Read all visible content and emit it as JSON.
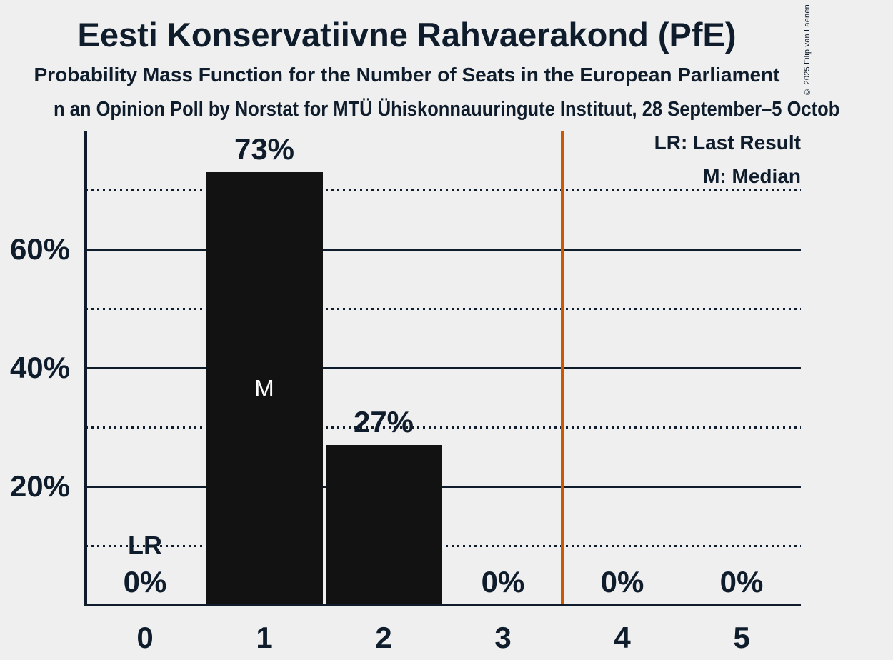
{
  "page": {
    "background_color": "#EFEFEF",
    "text_color": "#0E1C2B"
  },
  "header": {
    "title": "Eesti Konservatiivne Rahvaerakond (PfE)",
    "subtitle": "Probability Mass Function for the Number of Seats in the European Parliament",
    "source_line": "n an Opinion Poll by Norstat for MTÜ Ühiskonnauuringute Instituut, 28 September–5 Octob",
    "copyright": "© 2025 Filip van Laenen"
  },
  "legend": {
    "lr_label": "LR: Last Result",
    "m_label": "M: Median"
  },
  "chart_data": {
    "type": "bar",
    "title": "Eesti Konservatiivne Rahvaerakond (PfE)",
    "categories": [
      "0",
      "1",
      "2",
      "3",
      "4",
      "5"
    ],
    "values": [
      0,
      73,
      27,
      0,
      0,
      0
    ],
    "value_labels": [
      "0%",
      "73%",
      "27%",
      "0%",
      "0%",
      "0%"
    ],
    "ylim": [
      0,
      80
    ],
    "yticks_solid": [
      20,
      40,
      60
    ],
    "ytick_labels": [
      "20%",
      "40%",
      "60%"
    ],
    "yticks_dotted": [
      10,
      30,
      50,
      70
    ],
    "grid": "horizontal",
    "legend_position": "top-right",
    "median": {
      "category": "1",
      "label": "M"
    },
    "last_result": {
      "category": "0",
      "label": "LR",
      "line_position": 3.5
    },
    "colors": {
      "bar": "#121212",
      "median_text": "#FFFFFF",
      "last_result_line": "#CC5800",
      "grid_and_text": "#0E1C2B"
    }
  }
}
